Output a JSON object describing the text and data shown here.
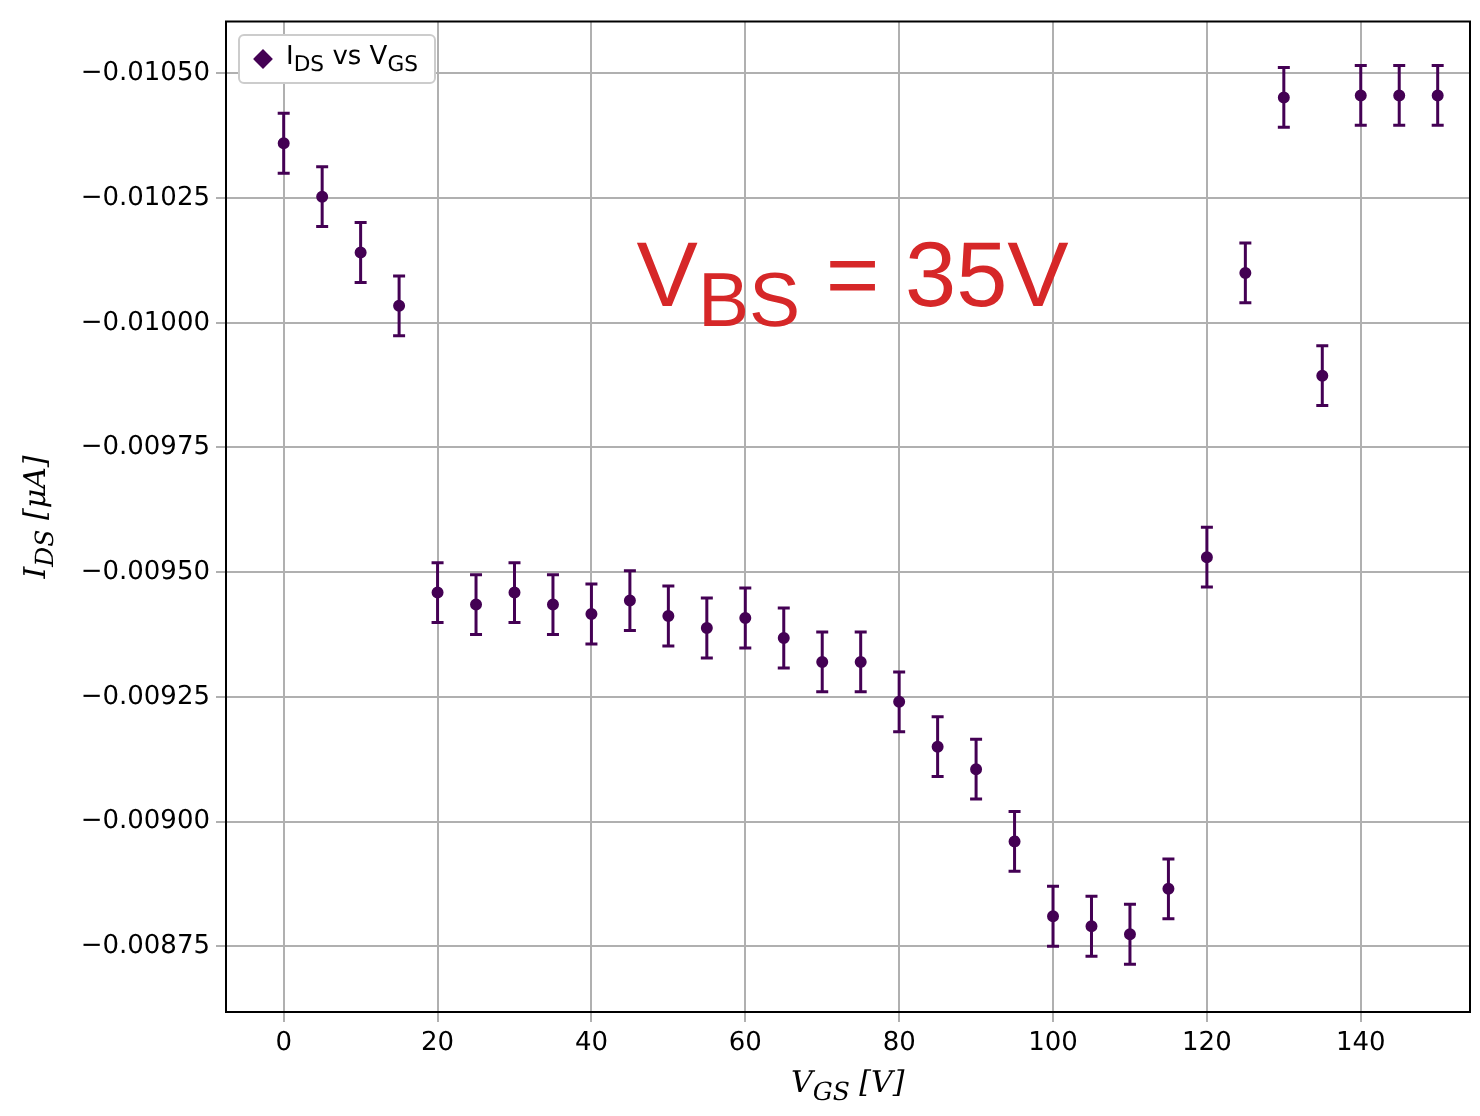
{
  "chart_data": {
    "type": "scatter",
    "xlabel": "V$_{GS}$ [V]",
    "ylabel": "I$_{DS}$ [μA]",
    "annotations": [
      "V$_{BS}$ = 35V"
    ],
    "x": [
      0,
      5,
      10,
      15,
      20,
      25,
      30,
      35,
      40,
      45,
      50,
      55,
      60,
      65,
      70,
      75,
      80,
      85,
      90,
      95,
      100,
      105,
      110,
      115,
      120,
      125,
      130,
      135,
      140,
      145,
      150
    ],
    "series": [
      {
        "name": "I$_{DS}$ vs V$_{GS}$",
        "color": "#440154",
        "values": [
          -0.01036,
          -0.010253,
          -0.010141,
          -0.010034,
          -0.009459,
          -0.009435,
          -0.009459,
          -0.009435,
          -0.009416,
          -0.009443,
          -0.009412,
          -0.009388,
          -0.009408,
          -0.009368,
          -0.00932,
          -0.00932,
          -0.00924,
          -0.00915,
          -0.009105,
          -0.00896,
          -0.00881,
          -0.00879,
          -0.008774,
          -0.008865,
          -0.00953,
          -0.0101,
          -0.010452,
          -0.009894,
          -0.010456,
          -0.010456,
          -0.010456
        ],
        "errors": [
          6e-05,
          6e-05,
          6e-05,
          6e-05,
          6e-05,
          6e-05,
          6e-05,
          6e-05,
          6e-05,
          6e-05,
          6e-05,
          6e-05,
          6e-05,
          6e-05,
          6e-05,
          6e-05,
          6e-05,
          6e-05,
          6e-05,
          6e-05,
          6e-05,
          6e-05,
          6e-05,
          6e-05,
          6e-05,
          6e-05,
          6e-05,
          6e-05,
          6e-05,
          6e-05,
          6e-05
        ]
      }
    ],
    "xlim": [
      -7.5,
      154.2
    ],
    "xticks": [
      0,
      20,
      40,
      60,
      80,
      100,
      120,
      140
    ],
    "ylim": [
      -0.008618,
      -0.010604
    ],
    "yticks": [
      {
        "value": -0.0105,
        "label": "−0.01050"
      },
      {
        "value": -0.01025,
        "label": "−0.01025"
      },
      {
        "value": -0.01,
        "label": "−0.01000"
      },
      {
        "value": -0.00975,
        "label": "−0.00975"
      },
      {
        "value": -0.0095,
        "label": "−0.00950"
      },
      {
        "value": -0.00925,
        "label": "−0.00925"
      },
      {
        "value": -0.009,
        "label": "−0.00900"
      },
      {
        "value": -0.00875,
        "label": "−0.00875"
      }
    ],
    "grid": true,
    "legend": "top left",
    "marker": "circle"
  }
}
